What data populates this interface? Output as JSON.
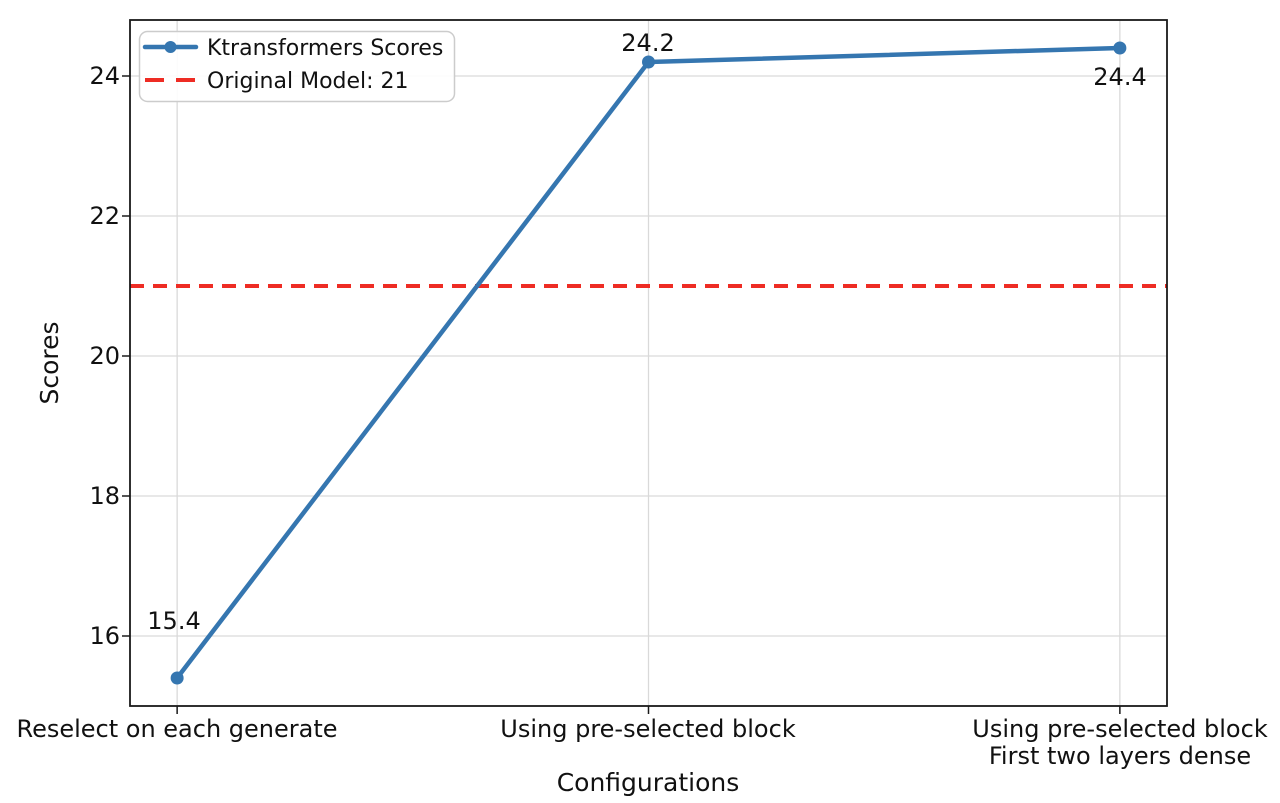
{
  "chart_data": {
    "type": "line",
    "title": "",
    "xlabel": "Configurations",
    "ylabel": "Scores",
    "categories": [
      [
        "Reselect on each generate"
      ],
      [
        "Using pre-selected block"
      ],
      [
        "Using pre-selected block",
        "First two layers dense"
      ]
    ],
    "series": [
      {
        "name": "Ktransformers Scores",
        "values": [
          15.4,
          24.2,
          24.4
        ],
        "color": "#3576b0",
        "marker": "circle",
        "line_style": "solid"
      }
    ],
    "reference_line": {
      "label": "Original Model: 21",
      "value": 21,
      "color": "#ee2c24",
      "line_style": "dashed"
    },
    "yticks": [
      16,
      18,
      20,
      22,
      24
    ],
    "ylim": [
      15.0,
      24.8
    ],
    "grid": true,
    "legend_position": "upper-left",
    "colors": {
      "grid": "#d9d9d9",
      "spine": "#1a1a1a",
      "text": "#111111",
      "legend_border": "#cccccc",
      "background": "#ffffff"
    }
  }
}
